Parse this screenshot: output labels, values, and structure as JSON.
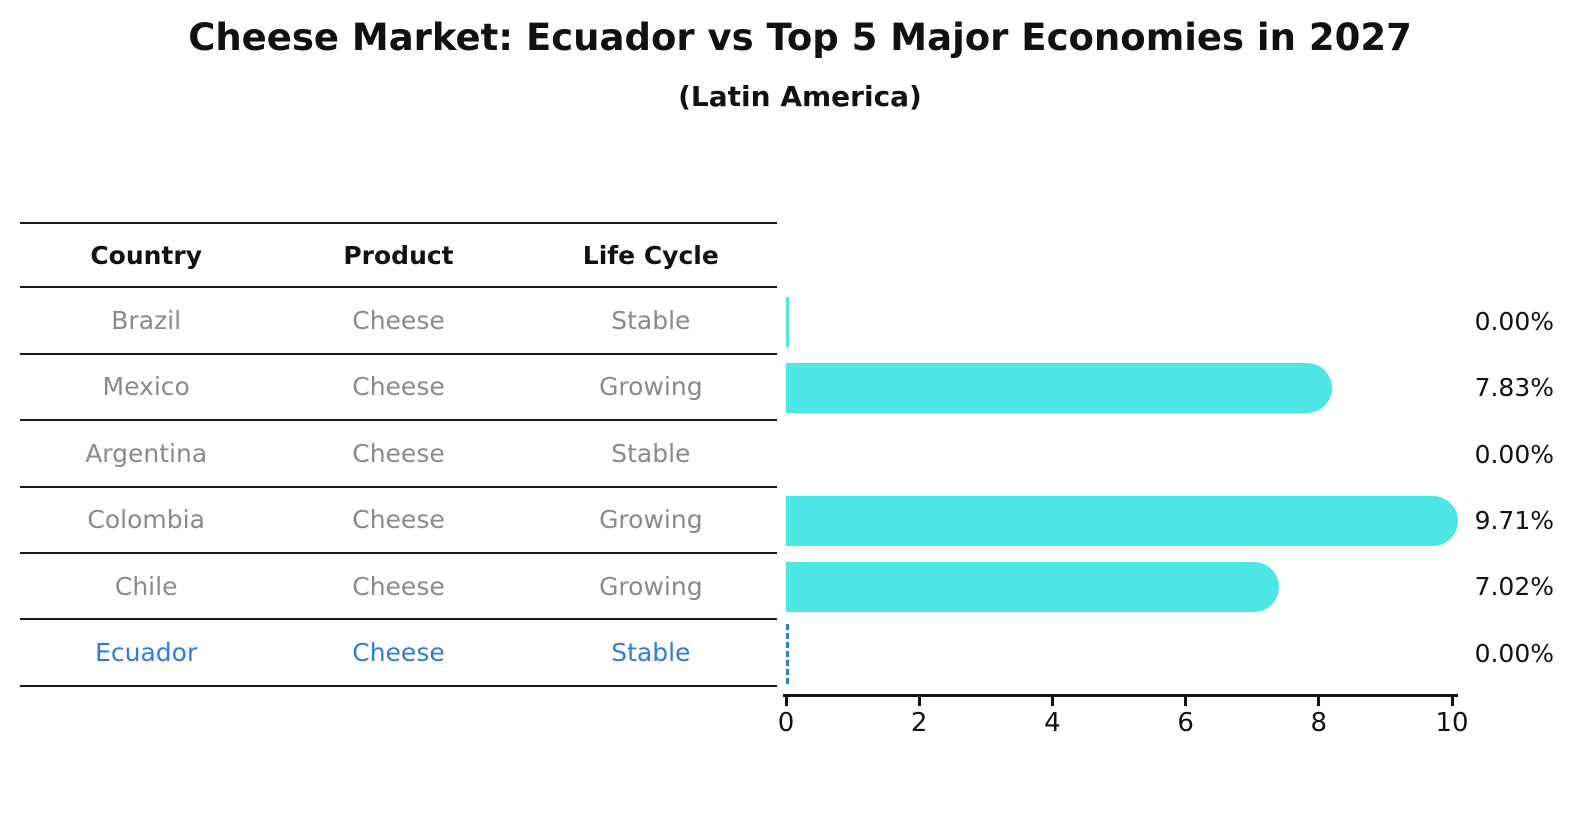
{
  "title": "Cheese Market: Ecuador vs Top 5 Major Economies in 2027",
  "subtitle": "(Latin America)",
  "table": {
    "headers": [
      "Country",
      "Product",
      "Life Cycle"
    ]
  },
  "chart_data": {
    "type": "bar",
    "orientation": "horizontal",
    "title": "Cheese Market: Ecuador vs Top 5 Major Economies in 2027",
    "subtitle": "(Latin America)",
    "categories": [
      "Brazil",
      "Mexico",
      "Argentina",
      "Colombia",
      "Chile",
      "Ecuador"
    ],
    "values": [
      0.0,
      7.83,
      0.0,
      9.71,
      7.02,
      0.0
    ],
    "value_labels": [
      "0.00%",
      "7.83%",
      "0.00%",
      "9.71%",
      "7.02%",
      "0.00%"
    ],
    "xlim": [
      0,
      10
    ],
    "x_ticks": [
      "0",
      "2",
      "4",
      "6",
      "8",
      "10"
    ],
    "grid": false,
    "legend": false,
    "rows": [
      {
        "country": "Brazil",
        "product": "Cheese",
        "life_cycle": "Stable",
        "value": 0.0,
        "label": "0.00%",
        "highlighted": false,
        "marker": "solid-sliver"
      },
      {
        "country": "Mexico",
        "product": "Cheese",
        "life_cycle": "Growing",
        "value": 7.83,
        "label": "7.83%",
        "highlighted": false,
        "marker": "bar"
      },
      {
        "country": "Argentina",
        "product": "Cheese",
        "life_cycle": "Stable",
        "value": 0.0,
        "label": "0.00%",
        "highlighted": false,
        "marker": "none"
      },
      {
        "country": "Colombia",
        "product": "Cheese",
        "life_cycle": "Growing",
        "value": 9.71,
        "label": "9.71%",
        "highlighted": false,
        "marker": "bar"
      },
      {
        "country": "Chile",
        "product": "Cheese",
        "life_cycle": "Growing",
        "value": 7.02,
        "label": "7.02%",
        "highlighted": false,
        "marker": "bar"
      },
      {
        "country": "Ecuador",
        "product": "Cheese",
        "life_cycle": "Stable",
        "value": 0.0,
        "label": "0.00%",
        "highlighted": true,
        "marker": "dashed-line"
      }
    ]
  },
  "colors": {
    "bar": "#4ce6e4",
    "highlight": "#2e7cdb",
    "row_text": "#8a8a8a",
    "heading_text": "#111111",
    "axis": "#111111",
    "background": "#ffffff"
  }
}
